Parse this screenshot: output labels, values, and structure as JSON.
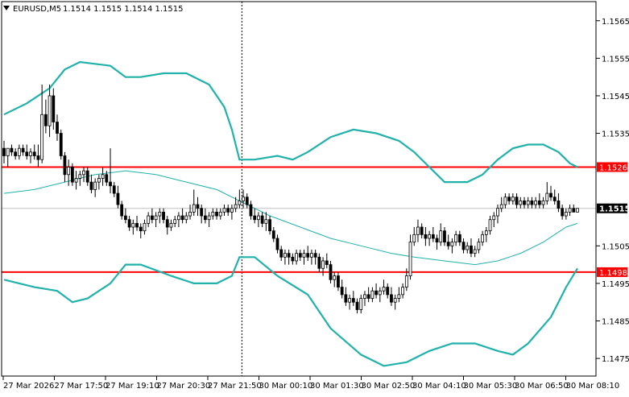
{
  "header": {
    "symbol_label": "EURUSD,M5",
    "ohlc_text": "1.1514 1.1515 1.1514 1.1515",
    "arrow_icon": "triangle-down-icon"
  },
  "colors": {
    "background": "#ffffff",
    "axis": "#000000",
    "grid": "#c8c8c8",
    "candle": "#000000",
    "bollinger": "#20b2aa",
    "level_line": "#ff0000",
    "price_line": "#c0c0c0",
    "price_tag_bg": "#000000",
    "level_tag_bg": "#ff0000"
  },
  "chart_data": {
    "type": "candlestick",
    "symbol": "EURUSD",
    "timeframe": "M5",
    "ylim": [
      1.14703,
      1.15701
    ],
    "y_ticks": [
      "1.1565",
      "1.1555",
      "1.1545",
      "1.1535",
      "1.1526",
      "1.1515",
      "1.1505",
      "1.1498",
      "1.1495",
      "1.1485",
      "1.1475"
    ],
    "x_ticks": [
      "27 Mar 2026",
      "27 Mar 17:50",
      "27 Mar 19:10",
      "27 Mar 20:30",
      "27 Mar 21:50",
      "30 Mar 00:10",
      "30 Mar 01:30",
      "30 Mar 02:50",
      "30 Mar 04:10",
      "30 Mar 05:30",
      "30 Mar 06:50",
      "30 Mar 08:10"
    ],
    "horizontal_levels": [
      {
        "label": "1.1526",
        "value": 1.1526
      },
      {
        "label": "1.1498",
        "value": 1.1498
      }
    ],
    "current_price": {
      "label": "1.1515",
      "value": 1.1515
    },
    "session_break_index": 62,
    "grid": true,
    "candles": [
      [
        1.1531,
        1.1533,
        1.1527,
        1.1529
      ],
      [
        1.1529,
        1.1531,
        1.1526,
        1.1531
      ],
      [
        1.1531,
        1.1532,
        1.1529,
        1.153
      ],
      [
        1.153,
        1.1531,
        1.1528,
        1.1529
      ],
      [
        1.1529,
        1.1532,
        1.1528,
        1.1531
      ],
      [
        1.1531,
        1.1532,
        1.1529,
        1.153
      ],
      [
        1.153,
        1.1532,
        1.1528,
        1.1529
      ],
      [
        1.1529,
        1.1531,
        1.1527,
        1.153
      ],
      [
        1.153,
        1.1532,
        1.1528,
        1.1529
      ],
      [
        1.1529,
        1.1532,
        1.1526,
        1.1528
      ],
      [
        1.1528,
        1.1548,
        1.1527,
        1.154
      ],
      [
        1.154,
        1.1544,
        1.1535,
        1.1537
      ],
      [
        1.1537,
        1.1548,
        1.1534,
        1.1545
      ],
      [
        1.1545,
        1.1547,
        1.1536,
        1.1538
      ],
      [
        1.1538,
        1.154,
        1.1533,
        1.1535
      ],
      [
        1.1535,
        1.1536,
        1.1528,
        1.1529
      ],
      [
        1.1529,
        1.153,
        1.1522,
        1.1524
      ],
      [
        1.1524,
        1.1528,
        1.1521,
        1.1526
      ],
      [
        1.1526,
        1.1527,
        1.1521,
        1.1522
      ],
      [
        1.1522,
        1.1525,
        1.152,
        1.1523
      ],
      [
        1.1523,
        1.1525,
        1.1521,
        1.1524
      ],
      [
        1.1524,
        1.1526,
        1.1522,
        1.1525
      ],
      [
        1.1525,
        1.1526,
        1.1521,
        1.1522
      ],
      [
        1.1522,
        1.1524,
        1.1519,
        1.152
      ],
      [
        1.152,
        1.1523,
        1.1518,
        1.1522
      ],
      [
        1.1522,
        1.1524,
        1.152,
        1.1523
      ],
      [
        1.1523,
        1.1526,
        1.1521,
        1.1524
      ],
      [
        1.1524,
        1.1525,
        1.1521,
        1.1522
      ],
      [
        1.1522,
        1.1531,
        1.1519,
        1.1521
      ],
      [
        1.1521,
        1.1522,
        1.1518,
        1.1519
      ],
      [
        1.1519,
        1.1521,
        1.1515,
        1.1516
      ],
      [
        1.1516,
        1.1517,
        1.1512,
        1.1513
      ],
      [
        1.1513,
        1.1515,
        1.1511,
        1.1512
      ],
      [
        1.1512,
        1.1513,
        1.1509,
        1.151
      ],
      [
        1.151,
        1.1512,
        1.1508,
        1.1511
      ],
      [
        1.1511,
        1.1513,
        1.1509,
        1.151
      ],
      [
        1.151,
        1.1511,
        1.1507,
        1.1509
      ],
      [
        1.1509,
        1.1512,
        1.1508,
        1.1511
      ],
      [
        1.1511,
        1.1514,
        1.151,
        1.1513
      ],
      [
        1.1513,
        1.1515,
        1.1511,
        1.1512
      ],
      [
        1.1512,
        1.1514,
        1.151,
        1.1513
      ],
      [
        1.1513,
        1.1515,
        1.1511,
        1.1514
      ],
      [
        1.1514,
        1.1515,
        1.1511,
        1.1512
      ],
      [
        1.1512,
        1.1513,
        1.1508,
        1.151
      ],
      [
        1.151,
        1.1512,
        1.1509,
        1.1511
      ],
      [
        1.1511,
        1.1513,
        1.151,
        1.1512
      ],
      [
        1.1512,
        1.1514,
        1.151,
        1.1513
      ],
      [
        1.1513,
        1.1515,
        1.1511,
        1.1512
      ],
      [
        1.1512,
        1.1514,
        1.1511,
        1.1513
      ],
      [
        1.1513,
        1.1516,
        1.1512,
        1.1514
      ],
      [
        1.1514,
        1.152,
        1.1513,
        1.1516
      ],
      [
        1.1516,
        1.1518,
        1.1513,
        1.1515
      ],
      [
        1.1515,
        1.1516,
        1.1511,
        1.1513
      ],
      [
        1.1513,
        1.1515,
        1.1511,
        1.1512
      ],
      [
        1.1512,
        1.1514,
        1.151,
        1.1513
      ],
      [
        1.1513,
        1.1515,
        1.1512,
        1.1514
      ],
      [
        1.1514,
        1.1515,
        1.1512,
        1.1513
      ],
      [
        1.1513,
        1.1515,
        1.1512,
        1.1514
      ],
      [
        1.1514,
        1.1516,
        1.1513,
        1.1515
      ],
      [
        1.1515,
        1.1516,
        1.1513,
        1.1514
      ],
      [
        1.1514,
        1.1516,
        1.1512,
        1.1515
      ],
      [
        1.1515,
        1.1518,
        1.1514,
        1.1516
      ],
      [
        1.1516,
        1.152,
        1.1515,
        1.1517
      ],
      [
        1.1517,
        1.152,
        1.1515,
        1.1518
      ],
      [
        1.1518,
        1.1519,
        1.1515,
        1.1516
      ],
      [
        1.1516,
        1.1517,
        1.1512,
        1.1513
      ],
      [
        1.1513,
        1.1515,
        1.1511,
        1.1512
      ],
      [
        1.1512,
        1.1514,
        1.151,
        1.1513
      ],
      [
        1.1513,
        1.1514,
        1.151,
        1.1511
      ],
      [
        1.1511,
        1.1514,
        1.1509,
        1.1512
      ],
      [
        1.1512,
        1.1513,
        1.1508,
        1.1509
      ],
      [
        1.1509,
        1.151,
        1.1506,
        1.1507
      ],
      [
        1.1507,
        1.1508,
        1.1503,
        1.1504
      ],
      [
        1.1504,
        1.1505,
        1.1501,
        1.1502
      ],
      [
        1.1502,
        1.1504,
        1.15,
        1.1503
      ],
      [
        1.1503,
        1.1504,
        1.15,
        1.1502
      ],
      [
        1.1502,
        1.1503,
        1.15,
        1.1501
      ],
      [
        1.1501,
        1.1504,
        1.15,
        1.1503
      ],
      [
        1.1503,
        1.1504,
        1.1501,
        1.1502
      ],
      [
        1.1502,
        1.1504,
        1.15,
        1.1503
      ],
      [
        1.1503,
        1.1505,
        1.1501,
        1.1502
      ],
      [
        1.1502,
        1.1504,
        1.15,
        1.1503
      ],
      [
        1.1503,
        1.1504,
        1.15,
        1.1502
      ],
      [
        1.1502,
        1.1503,
        1.1498,
        1.1499
      ],
      [
        1.1499,
        1.1502,
        1.1497,
        1.1501
      ],
      [
        1.1501,
        1.1503,
        1.1499,
        1.15
      ],
      [
        1.15,
        1.1501,
        1.1495,
        1.1496
      ],
      [
        1.1496,
        1.1498,
        1.1494,
        1.1497
      ],
      [
        1.1497,
        1.1498,
        1.1493,
        1.1494
      ],
      [
        1.1494,
        1.1496,
        1.1491,
        1.1492
      ],
      [
        1.1492,
        1.1494,
        1.1489,
        1.149
      ],
      [
        1.149,
        1.1492,
        1.1488,
        1.1491
      ],
      [
        1.1491,
        1.1493,
        1.1489,
        1.149
      ],
      [
        1.149,
        1.1491,
        1.1487,
        1.1488
      ],
      [
        1.1488,
        1.1492,
        1.1487,
        1.1491
      ],
      [
        1.1491,
        1.1493,
        1.1489,
        1.1492
      ],
      [
        1.1492,
        1.1494,
        1.149,
        1.1491
      ],
      [
        1.1491,
        1.1494,
        1.149,
        1.1493
      ],
      [
        1.1493,
        1.1495,
        1.1491,
        1.1492
      ],
      [
        1.1492,
        1.1494,
        1.149,
        1.1493
      ],
      [
        1.1493,
        1.1496,
        1.1492,
        1.1494
      ],
      [
        1.1494,
        1.1495,
        1.1491,
        1.1492
      ],
      [
        1.1492,
        1.1494,
        1.1489,
        1.149
      ],
      [
        1.149,
        1.1492,
        1.1488,
        1.1491
      ],
      [
        1.1491,
        1.1494,
        1.149,
        1.1492
      ],
      [
        1.1492,
        1.1495,
        1.1491,
        1.1494
      ],
      [
        1.1494,
        1.1499,
        1.1493,
        1.1497
      ],
      [
        1.1497,
        1.1508,
        1.1496,
        1.1506
      ],
      [
        1.1506,
        1.151,
        1.1505,
        1.1508
      ],
      [
        1.1508,
        1.1512,
        1.1506,
        1.151
      ],
      [
        1.151,
        1.1511,
        1.1507,
        1.1508
      ],
      [
        1.1508,
        1.151,
        1.1505,
        1.1507
      ],
      [
        1.1507,
        1.1509,
        1.1505,
        1.1508
      ],
      [
        1.1508,
        1.151,
        1.1506,
        1.1507
      ],
      [
        1.1507,
        1.1508,
        1.1504,
        1.1506
      ],
      [
        1.1506,
        1.1511,
        1.1505,
        1.1509
      ],
      [
        1.1509,
        1.151,
        1.1505,
        1.1506
      ],
      [
        1.1506,
        1.1508,
        1.1504,
        1.1505
      ],
      [
        1.1505,
        1.1507,
        1.1503,
        1.1506
      ],
      [
        1.1506,
        1.1509,
        1.1505,
        1.1508
      ],
      [
        1.1508,
        1.1509,
        1.1505,
        1.1506
      ],
      [
        1.1506,
        1.1507,
        1.1503,
        1.1504
      ],
      [
        1.1504,
        1.1506,
        1.1503,
        1.1505
      ],
      [
        1.1505,
        1.1507,
        1.1502,
        1.1503
      ],
      [
        1.1503,
        1.1505,
        1.1502,
        1.1504
      ],
      [
        1.1504,
        1.1507,
        1.1503,
        1.1506
      ],
      [
        1.1506,
        1.1509,
        1.1505,
        1.1508
      ],
      [
        1.1508,
        1.151,
        1.1506,
        1.1509
      ],
      [
        1.1509,
        1.1513,
        1.1508,
        1.1512
      ],
      [
        1.1512,
        1.1514,
        1.151,
        1.1513
      ],
      [
        1.1513,
        1.1516,
        1.1511,
        1.1515
      ],
      [
        1.1515,
        1.1518,
        1.1514,
        1.1516
      ],
      [
        1.1516,
        1.1519,
        1.1515,
        1.1518
      ],
      [
        1.1518,
        1.1519,
        1.1516,
        1.1517
      ],
      [
        1.1517,
        1.1519,
        1.1516,
        1.1518
      ],
      [
        1.1518,
        1.1519,
        1.1515,
        1.1516
      ],
      [
        1.1516,
        1.1518,
        1.1515,
        1.1517
      ],
      [
        1.1517,
        1.1518,
        1.1515,
        1.1516
      ],
      [
        1.1516,
        1.1518,
        1.1515,
        1.1517
      ],
      [
        1.1517,
        1.1518,
        1.1515,
        1.1516
      ],
      [
        1.1516,
        1.1518,
        1.1515,
        1.1517
      ],
      [
        1.1517,
        1.1519,
        1.1515,
        1.1516
      ],
      [
        1.1516,
        1.1518,
        1.1515,
        1.1517
      ],
      [
        1.1517,
        1.1522,
        1.1516,
        1.1519
      ],
      [
        1.1519,
        1.1521,
        1.1517,
        1.1518
      ],
      [
        1.1518,
        1.152,
        1.1516,
        1.1517
      ],
      [
        1.1517,
        1.1519,
        1.1514,
        1.1515
      ],
      [
        1.1515,
        1.1516,
        1.1512,
        1.1513
      ],
      [
        1.1513,
        1.1515,
        1.1512,
        1.1514
      ],
      [
        1.1514,
        1.1516,
        1.1513,
        1.1515
      ],
      [
        1.1515,
        1.1516,
        1.1514,
        1.1514
      ],
      [
        1.1514,
        1.1515,
        1.1514,
        1.1515
      ]
    ],
    "bollinger_upper": [
      [
        0,
        1.154
      ],
      [
        6,
        1.1543
      ],
      [
        12,
        1.1547
      ],
      [
        16,
        1.1552
      ],
      [
        20,
        1.1554
      ],
      [
        28,
        1.1553
      ],
      [
        32,
        1.155
      ],
      [
        36,
        1.155
      ],
      [
        42,
        1.1551
      ],
      [
        48,
        1.1551
      ],
      [
        54,
        1.1548
      ],
      [
        58,
        1.1542
      ],
      [
        60,
        1.1536
      ],
      [
        62,
        1.1528
      ],
      [
        66,
        1.1528
      ],
      [
        72,
        1.1529
      ],
      [
        76,
        1.1528
      ],
      [
        80,
        1.153
      ],
      [
        86,
        1.1534
      ],
      [
        92,
        1.1536
      ],
      [
        98,
        1.1535
      ],
      [
        104,
        1.1533
      ],
      [
        108,
        1.153
      ],
      [
        112,
        1.1526
      ],
      [
        116,
        1.1522
      ],
      [
        122,
        1.1522
      ],
      [
        126,
        1.1524
      ],
      [
        130,
        1.1528
      ],
      [
        134,
        1.1531
      ],
      [
        138,
        1.1532
      ],
      [
        142,
        1.1532
      ],
      [
        146,
        1.153
      ],
      [
        149,
        1.1527
      ],
      [
        151,
        1.1526
      ]
    ],
    "bollinger_middle": [
      [
        0,
        1.1519
      ],
      [
        8,
        1.152
      ],
      [
        16,
        1.1522
      ],
      [
        24,
        1.1524
      ],
      [
        32,
        1.1525
      ],
      [
        40,
        1.1524
      ],
      [
        48,
        1.1522
      ],
      [
        56,
        1.152
      ],
      [
        62,
        1.1517
      ],
      [
        70,
        1.1513
      ],
      [
        78,
        1.151
      ],
      [
        86,
        1.1507
      ],
      [
        94,
        1.1505
      ],
      [
        102,
        1.1503
      ],
      [
        108,
        1.1502
      ],
      [
        116,
        1.1501
      ],
      [
        124,
        1.15
      ],
      [
        130,
        1.1501
      ],
      [
        136,
        1.1503
      ],
      [
        142,
        1.1506
      ],
      [
        148,
        1.151
      ],
      [
        151,
        1.1511
      ]
    ],
    "bollinger_lower": [
      [
        0,
        1.1496
      ],
      [
        8,
        1.1494
      ],
      [
        14,
        1.1493
      ],
      [
        18,
        1.149
      ],
      [
        22,
        1.1491
      ],
      [
        28,
        1.1495
      ],
      [
        32,
        1.15
      ],
      [
        36,
        1.15
      ],
      [
        44,
        1.1497
      ],
      [
        50,
        1.1495
      ],
      [
        56,
        1.1495
      ],
      [
        60,
        1.1497
      ],
      [
        62,
        1.1502
      ],
      [
        66,
        1.1502
      ],
      [
        72,
        1.1497
      ],
      [
        80,
        1.1492
      ],
      [
        86,
        1.1483
      ],
      [
        94,
        1.1476
      ],
      [
        100,
        1.1473
      ],
      [
        106,
        1.1474
      ],
      [
        112,
        1.1477
      ],
      [
        118,
        1.1479
      ],
      [
        124,
        1.1479
      ],
      [
        130,
        1.1477
      ],
      [
        134,
        1.1476
      ],
      [
        138,
        1.1479
      ],
      [
        144,
        1.1486
      ],
      [
        148,
        1.1494
      ],
      [
        151,
        1.1499
      ]
    ]
  }
}
